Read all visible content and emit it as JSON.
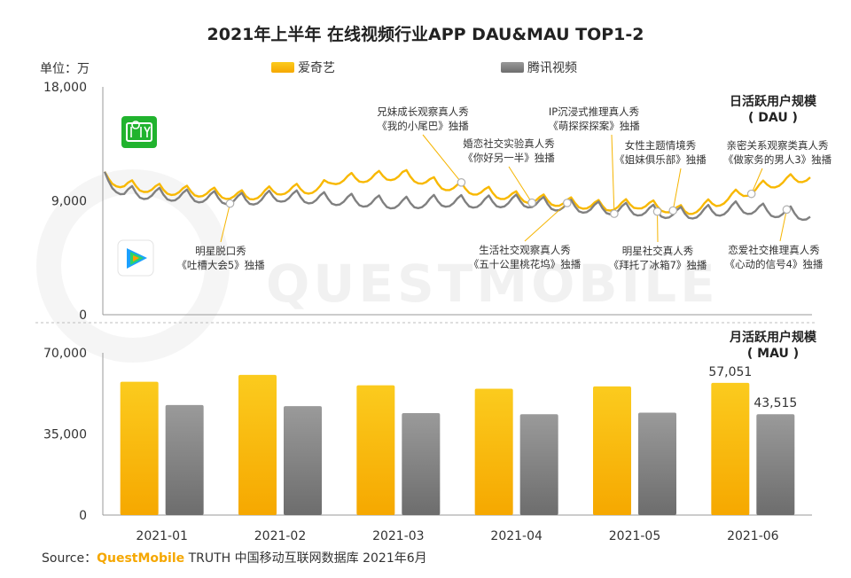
{
  "title": "2021年上半年 在线视频行业APP DAU&MAU TOP1-2",
  "unit_label": "单位：万",
  "legend": [
    {
      "name": "爱奇艺",
      "color": "#f8b800"
    },
    {
      "name": "腾讯视频",
      "color": "#8a8a8a"
    }
  ],
  "watermark": "QUESTMOBILE",
  "source": {
    "prefix": "Source：",
    "brand": "QuestMobile",
    "rest": " TRUTH 中国移动互联网数据库 2021年6月"
  },
  "chart_data": [
    {
      "type": "line",
      "name": "DAU",
      "section_label": [
        "日活跃用户规模",
        "( DAU )"
      ],
      "ylim": [
        0,
        18000
      ],
      "yticks": [
        {
          "v": 0,
          "label": "0"
        },
        {
          "v": 9000,
          "label": "9,000"
        },
        {
          "v": 18000,
          "label": "18,000"
        }
      ],
      "days": 181,
      "series": [
        {
          "name": "爱奇艺",
          "color": "#f8b800",
          "anchors": [
            [
              0,
              10800
            ],
            [
              5,
              10200
            ],
            [
              15,
              9800
            ],
            [
              26,
              9600
            ],
            [
              36,
              9300
            ],
            [
              45,
              9800
            ],
            [
              55,
              9900
            ],
            [
              58,
              10600
            ],
            [
              63,
              10700
            ],
            [
              76,
              11000
            ],
            [
              86,
              10200
            ],
            [
              96,
              9700
            ],
            [
              106,
              9200
            ],
            [
              118,
              8800
            ],
            [
              128,
              8500
            ],
            [
              136,
              8700
            ],
            [
              143,
              8400
            ],
            [
              148,
              8100
            ],
            [
              155,
              8700
            ],
            [
              162,
              9500
            ],
            [
              170,
              10300
            ],
            [
              180,
              10900
            ]
          ],
          "amp": 500
        },
        {
          "name": "腾讯视频",
          "color": "#808080",
          "anchors": [
            [
              0,
              10700
            ],
            [
              5,
              9600
            ],
            [
              15,
              9400
            ],
            [
              26,
              9200
            ],
            [
              36,
              9000
            ],
            [
              45,
              9300
            ],
            [
              55,
              9100
            ],
            [
              66,
              8900
            ],
            [
              76,
              8700
            ],
            [
              86,
              8900
            ],
            [
              96,
              8800
            ],
            [
              106,
              8900
            ],
            [
              118,
              8500
            ],
            [
              128,
              8300
            ],
            [
              136,
              8200
            ],
            [
              143,
              8000
            ],
            [
              148,
              7900
            ],
            [
              155,
              8100
            ],
            [
              162,
              8400
            ],
            [
              170,
              8100
            ],
            [
              180,
              7800
            ]
          ],
          "amp": 600
        }
      ],
      "annotations": [
        {
          "lines": [
            "明星脱口秀",
            "《吐槽大会5》独播"
          ],
          "day": 32,
          "series": 1,
          "pos": "below"
        },
        {
          "lines": [
            "兄妹成长观察真人秀",
            "《我的小尾巴》独播"
          ],
          "day": 91,
          "series": 0,
          "pos": "above"
        },
        {
          "lines": [
            "婚恋社交实验真人秀",
            "《你好另一半》独播"
          ],
          "day": 109,
          "series": 0,
          "pos": "above"
        },
        {
          "lines": [
            "生活社交观察真人秀",
            "《五十公里桃花坞》独播"
          ],
          "day": 118,
          "series": 1,
          "pos": "below"
        },
        {
          "lines": [
            "IP沉浸式推理真人秀",
            "《萌探探探案》独播"
          ],
          "day": 130,
          "series": 1,
          "pos": "above"
        },
        {
          "lines": [
            "女性主题情境秀",
            "《姐妹俱乐部》独播"
          ],
          "day": 145,
          "series": 0,
          "pos": "above"
        },
        {
          "lines": [
            "明星社交真人秀",
            "《拜托了冰箱7》独播"
          ],
          "day": 141,
          "series": 1,
          "pos": "below"
        },
        {
          "lines": [
            "亲密关系观察类真人秀",
            "《做家务的男人3》独播"
          ],
          "day": 165,
          "series": 0,
          "pos": "above"
        },
        {
          "lines": [
            "恋爱社交推理真人秀",
            "《心动的信号4》独播"
          ],
          "day": 174,
          "series": 1,
          "pos": "below"
        }
      ]
    },
    {
      "type": "bar",
      "name": "MAU",
      "section_label": [
        "月活跃用户规模",
        "( MAU )"
      ],
      "ylim": [
        0,
        70000
      ],
      "yticks": [
        {
          "v": 0,
          "label": "0"
        },
        {
          "v": 35000,
          "label": "35,000"
        },
        {
          "v": 70000,
          "label": "70,000"
        }
      ],
      "categories": [
        "2021-01",
        "2021-02",
        "2021-03",
        "2021-04",
        "2021-05",
        "2021-06"
      ],
      "series": [
        {
          "name": "爱奇艺",
          "color": "#f8b800",
          "values": [
            57500,
            60500,
            56000,
            54500,
            55500,
            57051
          ]
        },
        {
          "name": "腾讯视频",
          "color": "#8a8a8a",
          "values": [
            47500,
            47000,
            44000,
            43500,
            44200,
            43515
          ]
        }
      ],
      "data_labels": [
        {
          "category": 5,
          "series": 0,
          "text": "57,051"
        },
        {
          "category": 5,
          "series": 1,
          "text": "43,515"
        }
      ]
    }
  ]
}
